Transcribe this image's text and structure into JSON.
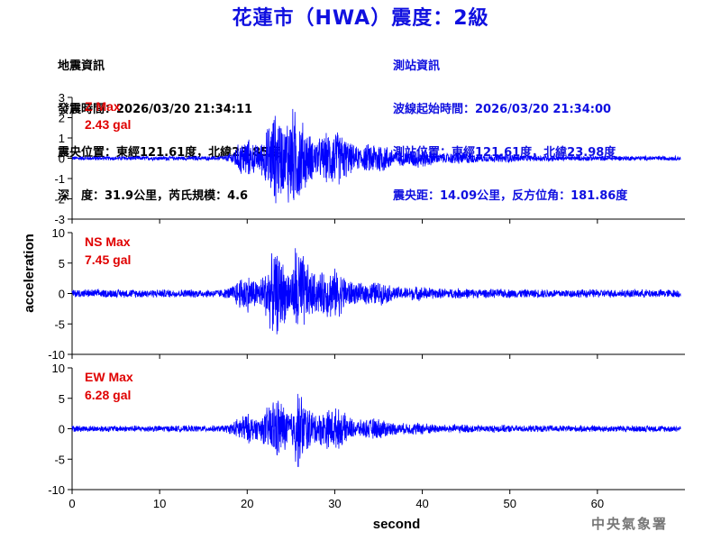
{
  "title": "花蓮市（HWA）震度：2級",
  "quake_info": {
    "heading": "地震資訊",
    "origin_time": "發震時間：2026/03/20 21:34:11",
    "epicenter": "震央位置：東經121.61度，北緯23.85度",
    "depth_magnitude": "深　度：31.9公里，芮氏規模：4.6"
  },
  "station_info": {
    "heading": "測站資訊",
    "wave_start": "波線起始時間：2026/03/20 21:34:00",
    "station_location": "測站位置：東經121.61度，北緯23.98度",
    "distance_azimuth": "震央距：14.09公里，反方位角：181.86度"
  },
  "agency": "中央氣象署",
  "colors": {
    "title": "#1010e0",
    "trace": "#0000ff",
    "max_label": "#e00000",
    "station_text": "#1010e0"
  },
  "chart_data": [
    {
      "type": "line",
      "component": "Z",
      "max_label": "Z Max",
      "max_value": "2.43 gal",
      "peak": 2.43,
      "ylim": [
        -3,
        3
      ],
      "yticks": [
        -3,
        -2,
        -1,
        0,
        1,
        2,
        3
      ],
      "envelope": {
        "noise": 0.04,
        "onset": 17.2,
        "peak_time": 24.5,
        "decay": 8.0
      }
    },
    {
      "type": "line",
      "component": "NS",
      "max_label": "NS Max",
      "max_value": "7.45 gal",
      "peak": 7.45,
      "ylim": [
        -10,
        10
      ],
      "yticks": [
        -10,
        -5,
        0,
        5,
        10
      ],
      "envelope": {
        "noise": 0.08,
        "onset": 17.2,
        "peak_time": 25.5,
        "decay": 5.0
      }
    },
    {
      "type": "line",
      "component": "EW",
      "max_label": "EW Max",
      "max_value": "6.28 gal",
      "peak": 6.28,
      "ylim": [
        -10,
        10
      ],
      "yticks": [
        -10,
        -5,
        0,
        5,
        10
      ],
      "envelope": {
        "noise": 0.08,
        "onset": 17.2,
        "peak_time": 25.5,
        "decay": 5.5
      }
    }
  ],
  "axes": {
    "xlabel": "second",
    "ylabel": "acceleration",
    "xlim": [
      0,
      70
    ],
    "xticks": [
      0,
      10,
      20,
      30,
      40,
      50,
      60
    ]
  }
}
